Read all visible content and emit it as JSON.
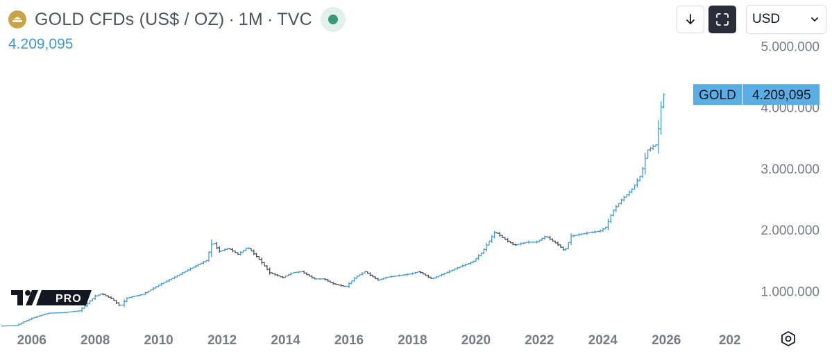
{
  "header": {
    "symbol_title": "GOLD CFDs (US$ / OZ)",
    "separator": "·",
    "interval": "1M",
    "exchange": "TVC",
    "logo_icon": "gold-bars-icon",
    "status_icon": "market-open-dot-icon"
  },
  "price_display": "4.209,095",
  "toolbar": {
    "download_icon": "arrow-down-icon",
    "fullscreen_icon": "fullscreen-icon",
    "currency": "USD",
    "currency_chevron_icon": "chevron-down-icon"
  },
  "price_tag": {
    "symbol": "GOLD",
    "value": "4.209,095"
  },
  "watermark": {
    "text": "PRO",
    "logo": "tradingview-logo"
  },
  "settings_icon": "hexagon-settings-icon",
  "colors": {
    "line": "#3f9bd3",
    "price_text": "#3f9bd3",
    "tag_bg": "#5aaee4",
    "down": "#4a4d57",
    "axis_text": "#787b86",
    "logo_gold": "#c9a24a",
    "status_green": "#3a9a78"
  },
  "chart_data": {
    "type": "line",
    "style": "monthly OHLC bars",
    "x_tick_labels": [
      "2006",
      "2008",
      "2010",
      "2012",
      "2014",
      "2016",
      "2018",
      "2020",
      "2022",
      "2024",
      "2026",
      "202"
    ],
    "y_tick_labels": [
      "1.000.000",
      "2.000.000",
      "3.000.000",
      "4.000.000",
      "5.000.000"
    ],
    "y_ticks": [
      1000000,
      2000000,
      3000000,
      4000000,
      5000000
    ],
    "ylim": [
      450000,
      5050000
    ],
    "xlim": [
      2005.0,
      2028.4
    ],
    "grid": false,
    "last_value": 4209095,
    "x": [
      2005.0,
      2005.5,
      2006.0,
      2006.5,
      2007.0,
      2007.5,
      2008.0,
      2008.2,
      2008.5,
      2008.8,
      2009.0,
      2009.5,
      2010.0,
      2010.5,
      2011.0,
      2011.5,
      2011.7,
      2011.9,
      2012.2,
      2012.5,
      2012.8,
      2013.2,
      2013.5,
      2013.9,
      2014.2,
      2014.5,
      2014.9,
      2015.2,
      2015.5,
      2015.9,
      2016.2,
      2016.5,
      2016.9,
      2017.2,
      2017.5,
      2017.9,
      2018.2,
      2018.6,
      2019.0,
      2019.5,
      2019.9,
      2020.2,
      2020.6,
      2020.9,
      2021.2,
      2021.6,
      2021.9,
      2022.2,
      2022.6,
      2022.8,
      2023.0,
      2023.5,
      2023.9,
      2024.1,
      2024.3,
      2024.6,
      2024.9,
      2025.2,
      2025.4,
      2025.7,
      2025.8,
      2025.9
    ],
    "y": [
      430000,
      440000,
      560000,
      640000,
      650000,
      680000,
      920000,
      960000,
      880000,
      750000,
      890000,
      950000,
      1100000,
      1230000,
      1370000,
      1500000,
      1820000,
      1650000,
      1700000,
      1600000,
      1720000,
      1500000,
      1300000,
      1220000,
      1300000,
      1320000,
      1200000,
      1200000,
      1120000,
      1070000,
      1230000,
      1320000,
      1180000,
      1230000,
      1250000,
      1280000,
      1320000,
      1200000,
      1290000,
      1400000,
      1480000,
      1640000,
      1970000,
      1850000,
      1750000,
      1800000,
      1800000,
      1900000,
      1750000,
      1650000,
      1900000,
      1950000,
      1980000,
      2050000,
      2300000,
      2500000,
      2650000,
      2900000,
      3300000,
      3400000,
      3900000,
      4209095
    ],
    "title": "GOLD CFDs (US$ / OZ) · 1M · TVC"
  }
}
